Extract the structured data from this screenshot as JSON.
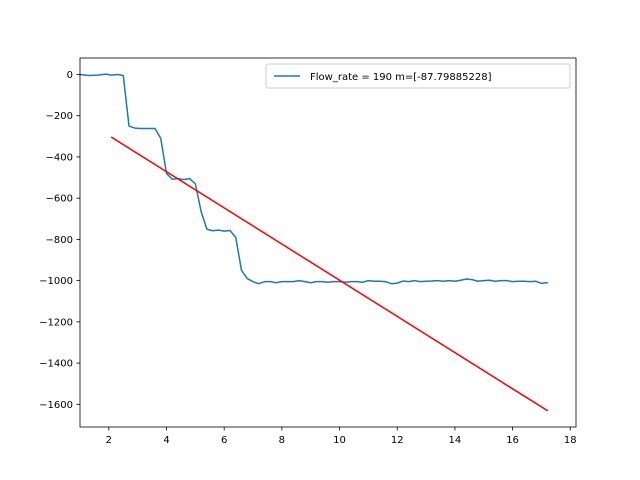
{
  "chart_data": {
    "type": "line",
    "title": "",
    "xlabel": "",
    "ylabel": "",
    "xlim": [
      1.0,
      18.2
    ],
    "ylim": [
      -1710,
      80
    ],
    "x_ticks": [
      2,
      4,
      6,
      8,
      10,
      12,
      14,
      16,
      18
    ],
    "y_ticks": [
      0,
      -200,
      -400,
      -600,
      -800,
      -1000,
      -1200,
      -1400,
      -1600
    ],
    "x_tick_labels": [
      "2",
      "4",
      "6",
      "8",
      "10",
      "12",
      "14",
      "16",
      "18"
    ],
    "y_tick_labels": [
      "0",
      "−200",
      "−400",
      "−600",
      "−800",
      "−1000",
      "−1200",
      "−1400",
      "−1600"
    ],
    "grid": false,
    "legend_position": "top-right",
    "series": [
      {
        "name": "Flow_rate = 190 m=[-87.79885228]",
        "color": "#1f77b4",
        "x": [
          1.0,
          1.3,
          1.6,
          1.9,
          2.1,
          2.3,
          2.5,
          2.7,
          2.9,
          3.1,
          3.3,
          3.6,
          3.8,
          4.0,
          4.2,
          4.4,
          4.6,
          4.8,
          5.0,
          5.2,
          5.4,
          5.6,
          5.8,
          6.0,
          6.2,
          6.4,
          6.6,
          6.8,
          7.0,
          7.2,
          7.4,
          7.6,
          7.8,
          8.0,
          8.2,
          8.4,
          8.6,
          8.8,
          9.0,
          9.2,
          9.4,
          9.6,
          9.8,
          10.0,
          10.2,
          10.4,
          10.6,
          10.8,
          11.0,
          11.2,
          11.4,
          11.6,
          11.8,
          12.0,
          12.2,
          12.4,
          12.6,
          12.8,
          13.0,
          13.2,
          13.4,
          13.6,
          13.8,
          14.0,
          14.2,
          14.4,
          14.6,
          14.8,
          15.0,
          15.2,
          15.4,
          15.6,
          15.8,
          16.0,
          16.2,
          16.4,
          16.6,
          16.8,
          17.0,
          17.2
        ],
        "values": [
          0,
          -5,
          -3,
          2,
          -3,
          0,
          -5,
          -250,
          -260,
          -262,
          -262,
          -262,
          -310,
          -480,
          -508,
          -505,
          -510,
          -505,
          -530,
          -665,
          -750,
          -758,
          -755,
          -760,
          -757,
          -790,
          -950,
          -990,
          -1005,
          -1015,
          -1005,
          -1005,
          -1010,
          -1005,
          -1005,
          -1005,
          -1000,
          -1005,
          -1010,
          -1005,
          -1005,
          -1008,
          -1005,
          -1005,
          -1008,
          -1005,
          -1005,
          -1008,
          -1000,
          -1003,
          -1003,
          -1005,
          -1015,
          -1012,
          -1002,
          -1005,
          -1000,
          -1005,
          -1003,
          -1002,
          -1000,
          -1003,
          -1000,
          -1003,
          -998,
          -992,
          -995,
          -1003,
          -1000,
          -998,
          -1003,
          -1000,
          -1000,
          -1005,
          -1003,
          -1003,
          -1005,
          -1003,
          -1013,
          -1010
        ]
      },
      {
        "name": "",
        "color": "#ff0000",
        "x": [
          2.1,
          17.2
        ],
        "values": [
          -305,
          -1630
        ]
      }
    ]
  }
}
